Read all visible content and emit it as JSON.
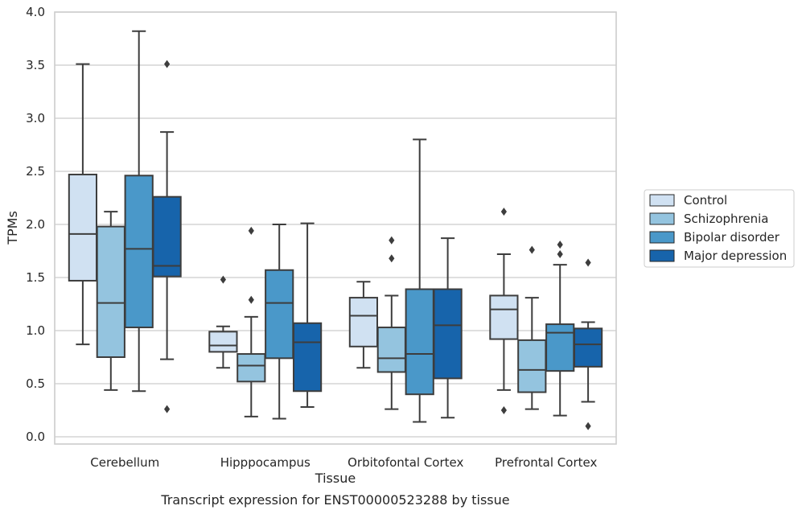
{
  "caption": "Transcript expression for ENST00000523288 by tissue",
  "chart_data": {
    "type": "box",
    "xlabel": "Tissue",
    "ylabel": "TPMs",
    "ylim": [
      -0.08,
      4.0
    ],
    "yticks": [
      "0.0",
      "0.5",
      "1.0",
      "1.5",
      "2.0",
      "2.5",
      "3.0",
      "3.5",
      "4.0"
    ],
    "grid": "horizontal",
    "legend_position": "right",
    "categories": [
      "Cerebellum",
      "Hipppocampus",
      "Orbitofontal Cortex",
      "Prefrontal Cortex"
    ],
    "series": [
      {
        "name": "Control",
        "color": "#d0e1f2",
        "boxes": [
          {
            "whislo": 0.87,
            "q1": 1.47,
            "med": 1.91,
            "q3": 2.47,
            "whishi": 3.51,
            "fliers": []
          },
          {
            "whislo": 0.65,
            "q1": 0.8,
            "med": 0.86,
            "q3": 0.99,
            "whishi": 1.04,
            "fliers": [
              1.48
            ]
          },
          {
            "whislo": 0.65,
            "q1": 0.85,
            "med": 1.14,
            "q3": 1.31,
            "whishi": 1.46,
            "fliers": []
          },
          {
            "whislo": 0.44,
            "q1": 0.92,
            "med": 1.2,
            "q3": 1.33,
            "whishi": 1.72,
            "fliers": [
              0.25,
              2.12
            ]
          }
        ]
      },
      {
        "name": "Schizophrenia",
        "color": "#94c4df",
        "boxes": [
          {
            "whislo": 0.44,
            "q1": 0.75,
            "med": 1.26,
            "q3": 1.98,
            "whishi": 2.12,
            "fliers": []
          },
          {
            "whislo": 0.19,
            "q1": 0.52,
            "med": 0.67,
            "q3": 0.78,
            "whishi": 1.13,
            "fliers": [
              1.29,
              1.94
            ]
          },
          {
            "whislo": 0.26,
            "q1": 0.61,
            "med": 0.74,
            "q3": 1.03,
            "whishi": 1.33,
            "fliers": [
              1.68,
              1.85
            ]
          },
          {
            "whislo": 0.26,
            "q1": 0.42,
            "med": 0.63,
            "q3": 0.91,
            "whishi": 1.31,
            "fliers": [
              1.76
            ]
          }
        ]
      },
      {
        "name": "Bipolar disorder",
        "color": "#4a98c9",
        "boxes": [
          {
            "whislo": 0.43,
            "q1": 1.03,
            "med": 1.77,
            "q3": 2.46,
            "whishi": 3.82,
            "fliers": []
          },
          {
            "whislo": 0.17,
            "q1": 0.74,
            "med": 1.26,
            "q3": 1.57,
            "whishi": 2.0,
            "fliers": []
          },
          {
            "whislo": 0.14,
            "q1": 0.4,
            "med": 0.78,
            "q3": 1.39,
            "whishi": 2.8,
            "fliers": []
          },
          {
            "whislo": 0.2,
            "q1": 0.62,
            "med": 0.98,
            "q3": 1.06,
            "whishi": 1.62,
            "fliers": [
              1.72,
              1.81
            ]
          }
        ]
      },
      {
        "name": "Major depression",
        "color": "#1764ab",
        "boxes": [
          {
            "whislo": 0.73,
            "q1": 1.51,
            "med": 1.61,
            "q3": 2.26,
            "whishi": 2.87,
            "fliers": [
              0.26,
              3.51
            ]
          },
          {
            "whislo": 0.28,
            "q1": 0.43,
            "med": 0.89,
            "q3": 1.07,
            "whishi": 2.01,
            "fliers": []
          },
          {
            "whislo": 0.18,
            "q1": 0.55,
            "med": 1.05,
            "q3": 1.39,
            "whishi": 1.87,
            "fliers": []
          },
          {
            "whislo": 0.33,
            "q1": 0.66,
            "med": 0.87,
            "q3": 1.02,
            "whishi": 1.08,
            "fliers": [
              0.1,
              1.64
            ]
          }
        ]
      }
    ]
  }
}
